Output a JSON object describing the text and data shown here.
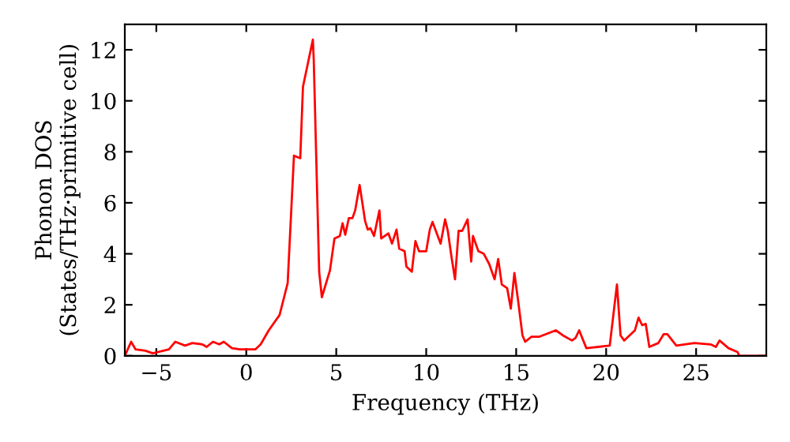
{
  "chart_data": {
    "type": "line",
    "xlabel": "Frequency (THz)",
    "ylabel": "Phonon DOS\n(States/THz·primitive cell)",
    "xlim": [
      -6.75,
      28.9
    ],
    "ylim": [
      0,
      13
    ],
    "xticks": [
      {
        "value": -5,
        "label": "−5"
      },
      0,
      5,
      10,
      15,
      20,
      25
    ],
    "yticks": [
      0,
      2,
      4,
      6,
      8,
      10,
      12
    ],
    "grid": false,
    "marker": "none",
    "line_style": "solid",
    "series": [
      {
        "color": "#ff0000",
        "x": [
          -6.75,
          -6.4,
          -6.15,
          -5.6,
          -5.2,
          -4.3,
          -3.95,
          -3.4,
          -3.0,
          -2.45,
          -2.2,
          -1.85,
          -1.5,
          -1.25,
          -0.8,
          -0.35,
          0.5,
          0.8,
          1.25,
          1.85,
          2.3,
          2.65,
          3.0,
          3.15,
          3.7,
          3.75,
          4.05,
          4.2,
          4.65,
          4.9,
          5.2,
          5.35,
          5.5,
          5.7,
          5.9,
          6.05,
          6.3,
          6.6,
          6.75,
          6.9,
          7.1,
          7.4,
          7.5,
          7.9,
          8.1,
          8.35,
          8.5,
          8.8,
          8.9,
          9.2,
          9.4,
          9.6,
          10.0,
          10.2,
          10.35,
          10.8,
          11.05,
          11.2,
          11.4,
          11.6,
          11.8,
          12.0,
          12.3,
          12.5,
          12.6,
          12.9,
          13.2,
          13.5,
          13.8,
          14.0,
          14.2,
          14.5,
          14.7,
          14.9,
          15.1,
          15.35,
          15.5,
          15.85,
          16.3,
          17.2,
          17.6,
          18.1,
          18.3,
          18.5,
          18.9,
          20.2,
          20.6,
          20.8,
          21.0,
          21.6,
          21.8,
          22.0,
          22.2,
          22.4,
          22.9,
          23.2,
          23.4,
          23.9,
          24.9,
          25.8,
          26.1,
          26.3,
          26.8,
          27.3,
          27.4,
          28.9
        ],
        "values": [
          0,
          0.55,
          0.25,
          0.2,
          0.1,
          0.25,
          0.55,
          0.4,
          0.5,
          0.45,
          0.35,
          0.55,
          0.45,
          0.55,
          0.3,
          0.25,
          0.25,
          0.45,
          1.0,
          1.6,
          2.85,
          7.85,
          7.75,
          10.55,
          12.4,
          11.6,
          3.3,
          2.3,
          3.35,
          4.6,
          4.7,
          5.2,
          4.75,
          5.4,
          5.4,
          5.7,
          6.7,
          5.3,
          4.95,
          5.0,
          4.7,
          5.7,
          4.6,
          4.8,
          4.4,
          4.95,
          4.2,
          4.1,
          3.5,
          3.3,
          4.5,
          4.1,
          4.1,
          4.95,
          5.25,
          4.4,
          5.35,
          4.9,
          3.9,
          3.0,
          4.9,
          4.9,
          5.35,
          3.7,
          4.7,
          4.1,
          4.0,
          3.6,
          3.0,
          3.8,
          2.8,
          2.65,
          1.85,
          3.25,
          2.2,
          0.8,
          0.55,
          0.75,
          0.75,
          1.0,
          0.8,
          0.6,
          0.7,
          1.0,
          0.3,
          0.4,
          2.8,
          0.8,
          0.6,
          1.0,
          1.5,
          1.2,
          1.25,
          0.35,
          0.5,
          0.85,
          0.85,
          0.4,
          0.5,
          0.45,
          0.35,
          0.6,
          0.3,
          0.15,
          0,
          0
        ]
      }
    ]
  }
}
